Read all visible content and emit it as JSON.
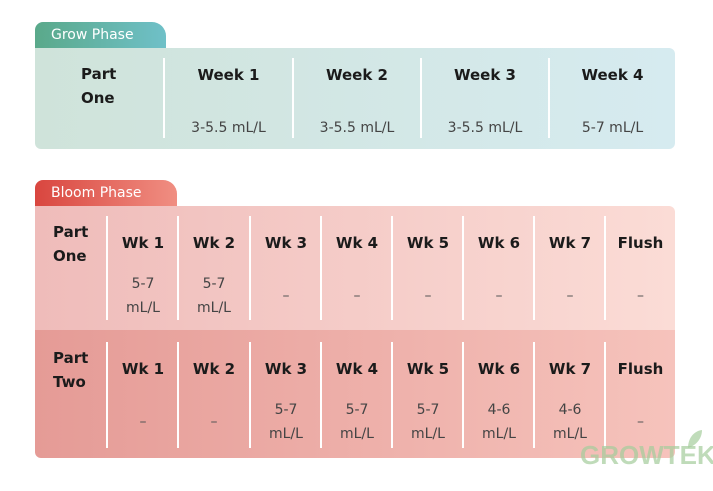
{
  "grow": {
    "tab": "Grow Phase",
    "row_header": [
      "Part",
      "One"
    ],
    "columns": [
      {
        "header": "Week 1",
        "value": "3-5.5 mL/L"
      },
      {
        "header": "Week 2",
        "value": "3-5.5 mL/L"
      },
      {
        "header": "Week 3",
        "value": "3-5.5 mL/L"
      },
      {
        "header": "Week 4",
        "value": "5-7 mL/L"
      }
    ]
  },
  "bloom": {
    "tab": "Bloom Phase",
    "headers": [
      "Wk 1",
      "Wk 2",
      "Wk 3",
      "Wk 4",
      "Wk 5",
      "Wk 6",
      "Wk 7",
      "Flush"
    ],
    "part_one": {
      "row_header": [
        "Part",
        "One"
      ],
      "values": [
        [
          "5-7",
          "mL/L"
        ],
        [
          "5-7",
          "mL/L"
        ],
        [
          "–"
        ],
        [
          "–"
        ],
        [
          "–"
        ],
        [
          "–"
        ],
        [
          "–"
        ],
        [
          "–"
        ]
      ]
    },
    "part_two": {
      "row_header": [
        "Part",
        "Two"
      ],
      "values": [
        [
          "–"
        ],
        [
          "–"
        ],
        [
          "5-7",
          "mL/L"
        ],
        [
          "5-7",
          "mL/L"
        ],
        [
          "5-7",
          "mL/L"
        ],
        [
          "4-6",
          "mL/L"
        ],
        [
          "4-6",
          "mL/L"
        ],
        [
          "–"
        ]
      ]
    }
  },
  "watermark": "GROWTEK"
}
